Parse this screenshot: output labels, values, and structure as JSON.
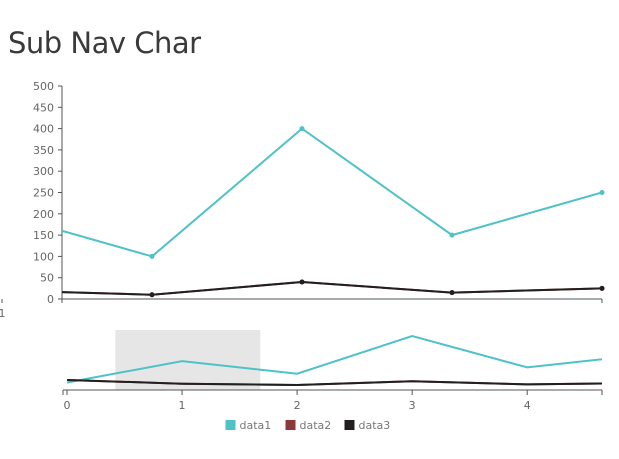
{
  "page": {
    "title": "Sub Nav Char"
  },
  "chart_data": {
    "type": "line",
    "x": [
      0,
      1,
      2,
      3,
      4,
      5
    ],
    "series": [
      {
        "name": "data1",
        "values": [
          30,
          200,
          100,
          400,
          150,
          250
        ],
        "color": "#4ec2c6"
      },
      {
        "name": "data2",
        "values": [
          50,
          20,
          10,
          40,
          15,
          25
        ],
        "color": "#8b3a3a"
      },
      {
        "name": "data3",
        "values": [
          50,
          20,
          10,
          40,
          15,
          25
        ],
        "color": "#231f20"
      }
    ],
    "main_view": {
      "x_range": [
        1.4,
        5
      ],
      "y_range": [
        0,
        500
      ],
      "y_ticks": [
        0,
        50,
        100,
        150,
        200,
        250,
        300,
        350,
        400,
        450,
        500
      ],
      "x_ticks": [
        1
      ]
    },
    "subchart": {
      "x_range": [
        0,
        4.65
      ],
      "x_ticks": [
        0,
        1,
        2,
        3,
        4
      ],
      "brush_range": [
        0.42,
        1.68
      ]
    },
    "legend_position": "bottom-center"
  }
}
